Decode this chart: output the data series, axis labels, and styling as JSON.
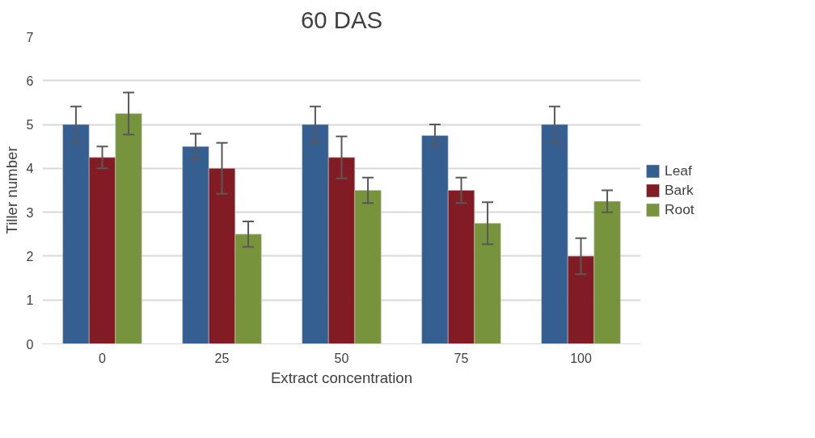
{
  "chart_data": {
    "type": "bar",
    "title": "60 DAS",
    "xlabel": "Extract concentration",
    "ylabel": "Tiller number",
    "categories": [
      "0",
      "25",
      "50",
      "75",
      "100"
    ],
    "series": [
      {
        "name": "Leaf",
        "color": "#355f91",
        "values": [
          5,
          4.5,
          5,
          4.75,
          5
        ],
        "errors": [
          0.41,
          0.29,
          0.41,
          0.25,
          0.41
        ]
      },
      {
        "name": "Bark",
        "color": "#821c24",
        "values": [
          4.25,
          4,
          4.25,
          3.5,
          2
        ],
        "errors": [
          0.25,
          0.58,
          0.48,
          0.29,
          0.41
        ]
      },
      {
        "name": "Root",
        "color": "#77933c",
        "values": [
          5.25,
          2.5,
          3.5,
          2.75,
          3.25
        ],
        "errors": [
          0.48,
          0.29,
          0.29,
          0.48,
          0.25
        ]
      }
    ],
    "ylim": [
      0,
      7
    ],
    "yticks": [
      0,
      1,
      2,
      3,
      4,
      5,
      6,
      7
    ],
    "grid": "y",
    "legend": "right"
  }
}
